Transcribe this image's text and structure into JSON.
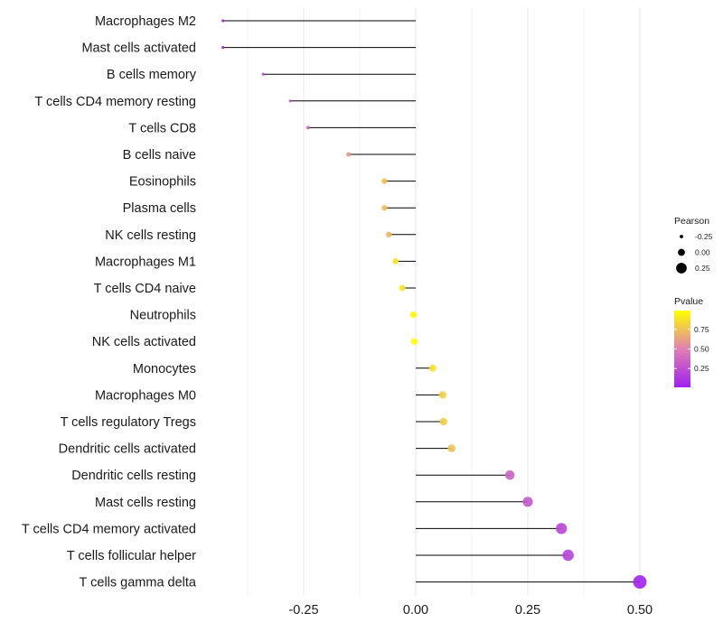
{
  "chart_data": {
    "type": "lollipop",
    "categories": [
      "Macrophages M2",
      "Mast cells activated",
      "B cells memory",
      "T cells CD4 memory resting",
      "T cells CD8",
      "B cells naive",
      "Eosinophils",
      "Plasma cells",
      "NK cells resting",
      "Macrophages M1",
      "T cells CD4 naive",
      "Neutrophils",
      "NK cells activated",
      "Monocytes",
      "Macrophages M0",
      "T cells regulatory  Tregs ",
      "Dendritic cells activated",
      "Dendritic cells resting",
      "Mast cells resting",
      "T cells CD4 memory activated",
      "T cells follicular helper",
      "T cells gamma delta"
    ],
    "values": [
      -0.43,
      -0.43,
      -0.34,
      -0.28,
      -0.24,
      -0.15,
      -0.07,
      -0.07,
      -0.06,
      -0.045,
      -0.03,
      -0.005,
      -0.003,
      0.038,
      0.06,
      0.062,
      0.08,
      0.21,
      0.25,
      0.325,
      0.34,
      0.5
    ],
    "pvalues": [
      0.02,
      0.02,
      0.2,
      0.25,
      0.3,
      0.6,
      0.75,
      0.75,
      0.72,
      0.88,
      0.9,
      0.97,
      0.99,
      0.88,
      0.8,
      0.8,
      0.75,
      0.35,
      0.3,
      0.2,
      0.18,
      0.02
    ],
    "xlim": [
      -0.43,
      0.5
    ],
    "xticks": [
      -0.25,
      0.0,
      0.25,
      0.5
    ],
    "xtick_labels": [
      "-0.25",
      "0.00",
      "0.25",
      "0.50"
    ],
    "grid": true,
    "legend_position": "right",
    "size_legend": {
      "title": "Pearson",
      "values": [
        -0.25,
        0.0,
        0.25
      ],
      "labels": [
        "-0.25",
        "0.00",
        "0.25"
      ]
    },
    "color_legend": {
      "title": "Pvalue",
      "ticks": [
        0.75,
        0.5,
        0.25
      ],
      "labels": [
        "0.75",
        "0.50",
        "0.25"
      ],
      "range": [
        0.01,
        0.99
      ],
      "low_color": "#a020f0",
      "mid_color": "#e080b0",
      "high_color": "#ffff00"
    },
    "stem_color": "#000000",
    "grid_color": "#ebebeb"
  }
}
